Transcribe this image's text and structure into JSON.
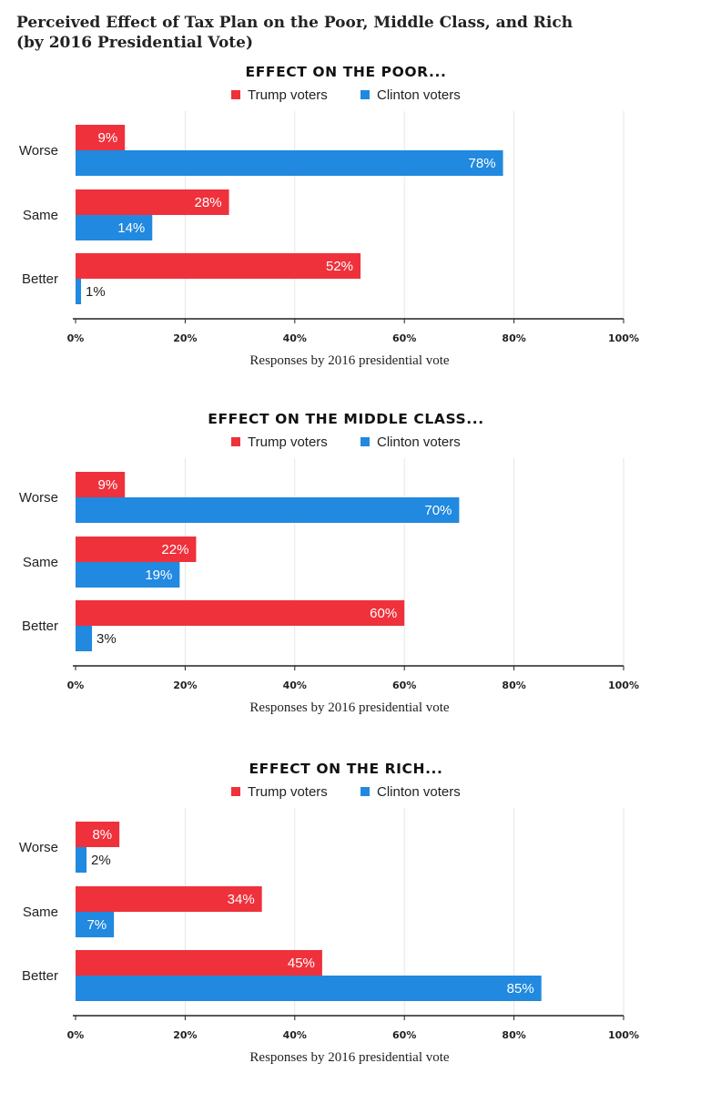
{
  "page_title": {
    "line1": "Perceived Effect of Tax Plan on the Poor, Middle Class, and Rich",
    "line2": "(by 2016 Presidential Vote)"
  },
  "colors": {
    "trump": "#ef313b",
    "clinton": "#2189df",
    "grid": "#e6e6e6",
    "axis": "#222222"
  },
  "chart_data": [
    {
      "type": "bar",
      "orientation": "horizontal",
      "title": "EFFECT ON THE POOR...",
      "categories": [
        "Worse",
        "Same",
        "Better"
      ],
      "series": [
        {
          "name": "Trump voters",
          "values": [
            9,
            28,
            52
          ]
        },
        {
          "name": "Clinton voters",
          "values": [
            78,
            14,
            1
          ]
        }
      ],
      "value_labels": [
        [
          "9%",
          "28%",
          "52%"
        ],
        [
          "78%",
          "14%",
          "1%"
        ]
      ],
      "xlabel": "Responses by 2016 presidential vote",
      "xlim": [
        0,
        100
      ],
      "ticks": [
        "0%",
        "20%",
        "40%",
        "60%",
        "80%",
        "100%"
      ],
      "grid": true,
      "legend_placement": "top-center"
    },
    {
      "type": "bar",
      "orientation": "horizontal",
      "title": "EFFECT ON THE MIDDLE CLASS...",
      "categories": [
        "Worse",
        "Same",
        "Better"
      ],
      "series": [
        {
          "name": "Trump voters",
          "values": [
            9,
            22,
            60
          ]
        },
        {
          "name": "Clinton voters",
          "values": [
            70,
            19,
            3
          ]
        }
      ],
      "value_labels": [
        [
          "9%",
          "22%",
          "60%"
        ],
        [
          "70%",
          "19%",
          "3%"
        ]
      ],
      "xlabel": "Responses by 2016 presidential vote",
      "xlim": [
        0,
        100
      ],
      "ticks": [
        "0%",
        "20%",
        "40%",
        "60%",
        "80%",
        "100%"
      ],
      "grid": true,
      "legend_placement": "top-center"
    },
    {
      "type": "bar",
      "orientation": "horizontal",
      "title": "EFFECT ON THE RICH...",
      "categories": [
        "Worse",
        "Same",
        "Better"
      ],
      "series": [
        {
          "name": "Trump voters",
          "values": [
            8,
            34,
            45
          ]
        },
        {
          "name": "Clinton voters",
          "values": [
            2,
            7,
            85
          ]
        }
      ],
      "value_labels": [
        [
          "8%",
          "34%",
          "45%"
        ],
        [
          "2%",
          "7%",
          "85%"
        ]
      ],
      "xlabel": "Responses by 2016 presidential vote",
      "xlim": [
        0,
        100
      ],
      "ticks": [
        "0%",
        "20%",
        "40%",
        "60%",
        "80%",
        "100%"
      ],
      "grid": true,
      "legend_placement": "top-center"
    }
  ]
}
